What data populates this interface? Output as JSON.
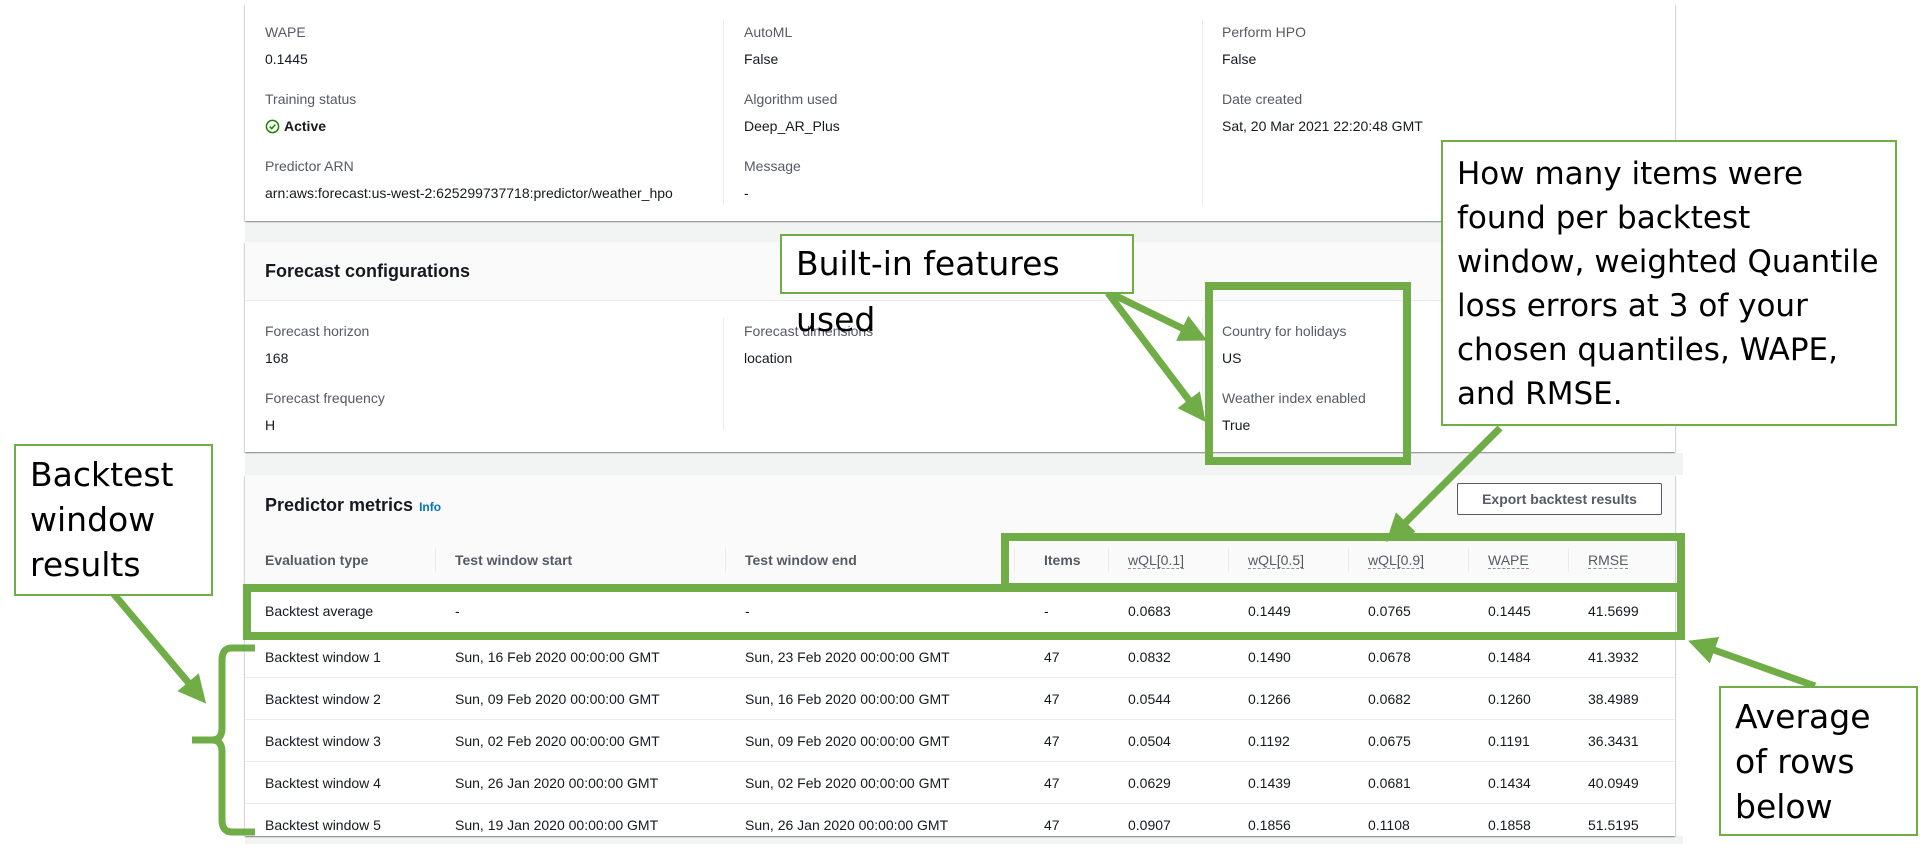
{
  "summary": {
    "columns": [
      [
        {
          "label": "WAPE",
          "value": "0.1445"
        },
        {
          "label": "Training status",
          "value": "Active",
          "status": "active"
        },
        {
          "label": "Predictor ARN",
          "value": "arn:aws:forecast:us-west-2:625299737718:predictor/weather_hpo"
        }
      ],
      [
        {
          "label": "AutoML",
          "value": "False"
        },
        {
          "label": "Algorithm used",
          "value": "Deep_AR_Plus"
        },
        {
          "label": "Message",
          "value": "-"
        }
      ],
      [
        {
          "label": "Perform HPO",
          "value": "False"
        },
        {
          "label": "Date created",
          "value": "Sat, 20 Mar 2021 22:20:48 GMT"
        }
      ]
    ],
    "status_color": "#1d8102"
  },
  "forecast_config": {
    "title": "Forecast configurations",
    "columns": [
      [
        {
          "label": "Forecast horizon",
          "value": "168"
        },
        {
          "label": "Forecast frequency",
          "value": "H"
        }
      ],
      [
        {
          "label": "Forecast dimensions",
          "value": "location"
        }
      ],
      [
        {
          "label": "Country for holidays",
          "value": "US"
        },
        {
          "label": "Weather index enabled",
          "value": "True"
        }
      ]
    ]
  },
  "predictor_metrics": {
    "title": "Predictor metrics",
    "info_label": "Info",
    "export_button": "Export backtest results",
    "headers": [
      "Evaluation type",
      "Test window start",
      "Test window end",
      "Items",
      "wQL[0.1]",
      "wQL[0.5]",
      "wQL[0.9]",
      "WAPE",
      "RMSE"
    ],
    "rows": [
      [
        "Backtest average",
        "-",
        "-",
        "-",
        "0.0683",
        "0.1449",
        "0.0765",
        "0.1445",
        "41.5699"
      ],
      [
        "Backtest window 1",
        "Sun, 16 Feb 2020 00:00:00 GMT",
        "Sun, 23 Feb 2020 00:00:00 GMT",
        "47",
        "0.0832",
        "0.1490",
        "0.0678",
        "0.1484",
        "41.3932"
      ],
      [
        "Backtest window 2",
        "Sun, 09 Feb 2020 00:00:00 GMT",
        "Sun, 16 Feb 2020 00:00:00 GMT",
        "47",
        "0.0544",
        "0.1266",
        "0.0682",
        "0.1260",
        "38.4989"
      ],
      [
        "Backtest window 3",
        "Sun, 02 Feb 2020 00:00:00 GMT",
        "Sun, 09 Feb 2020 00:00:00 GMT",
        "47",
        "0.0504",
        "0.1192",
        "0.0675",
        "0.1191",
        "36.3431"
      ],
      [
        "Backtest window 4",
        "Sun, 26 Jan 2020 00:00:00 GMT",
        "Sun, 02 Feb 2020 00:00:00 GMT",
        "47",
        "0.0629",
        "0.1439",
        "0.0681",
        "0.1434",
        "40.0949"
      ],
      [
        "Backtest window 5",
        "Sun, 19 Jan 2020 00:00:00 GMT",
        "Sun, 26 Jan 2020 00:00:00 GMT",
        "47",
        "0.0907",
        "0.1856",
        "0.1108",
        "0.1858",
        "51.5195"
      ]
    ]
  },
  "annotations": {
    "built_in": "Built-in features used",
    "metrics_explainer": "How many items were found per backtest window, weighted Quantile loss errors at 3 of your chosen quantiles, WAPE, and RMSE.",
    "backtest_windows": "Backtest window results",
    "average_rows": "Average of rows below",
    "color": "#70ad47"
  }
}
